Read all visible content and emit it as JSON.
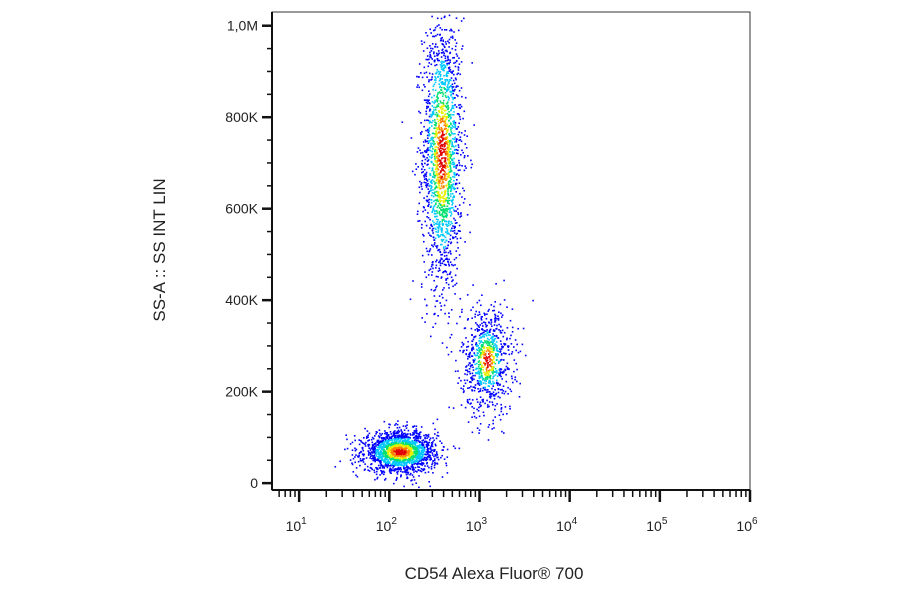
{
  "chart_data": {
    "type": "scatter",
    "subtype": "flow-cytometry-density-dot-plot",
    "xlabel": "CD54 Alexa Fluor® 700",
    "ylabel": "SS-A :: SS INT LIN",
    "x_scale": "log",
    "y_scale": "linear",
    "xlim": [
      5,
      1000000
    ],
    "ylim": [
      -15000,
      1030000
    ],
    "x_ticks": [
      {
        "base": "10",
        "exp": "1",
        "value": 10
      },
      {
        "base": "10",
        "exp": "2",
        "value": 100
      },
      {
        "base": "10",
        "exp": "3",
        "value": 1000
      },
      {
        "base": "10",
        "exp": "4",
        "value": 10000
      },
      {
        "base": "10",
        "exp": "5",
        "value": 100000
      },
      {
        "base": "10",
        "exp": "6",
        "value": 1000000
      }
    ],
    "y_ticks": [
      {
        "label": "0",
        "value": 0
      },
      {
        "label": "200K",
        "value": 200000
      },
      {
        "label": "400K",
        "value": 400000
      },
      {
        "label": "600K",
        "value": 600000
      },
      {
        "label": "800K",
        "value": 800000
      },
      {
        "label": "1,0M",
        "value": 1000000
      }
    ],
    "grid": false,
    "legend": "none",
    "color_scale": [
      "#0000ff",
      "#00c8ff",
      "#00e070",
      "#e8f000",
      "#ff8000",
      "#e00000"
    ],
    "populations": [
      {
        "x_center": 380,
        "x_spread_decades": 0.11,
        "y_center": 720000,
        "y_spread": 150000,
        "density": 1.0
      },
      {
        "x_center": 1200,
        "x_spread_decades": 0.14,
        "y_center": 270000,
        "y_spread": 60000,
        "density": 0.45
      },
      {
        "x_center": 130,
        "x_spread_decades": 0.2,
        "y_center": 70000,
        "y_spread": 22000,
        "density": 1.0
      }
    ]
  }
}
